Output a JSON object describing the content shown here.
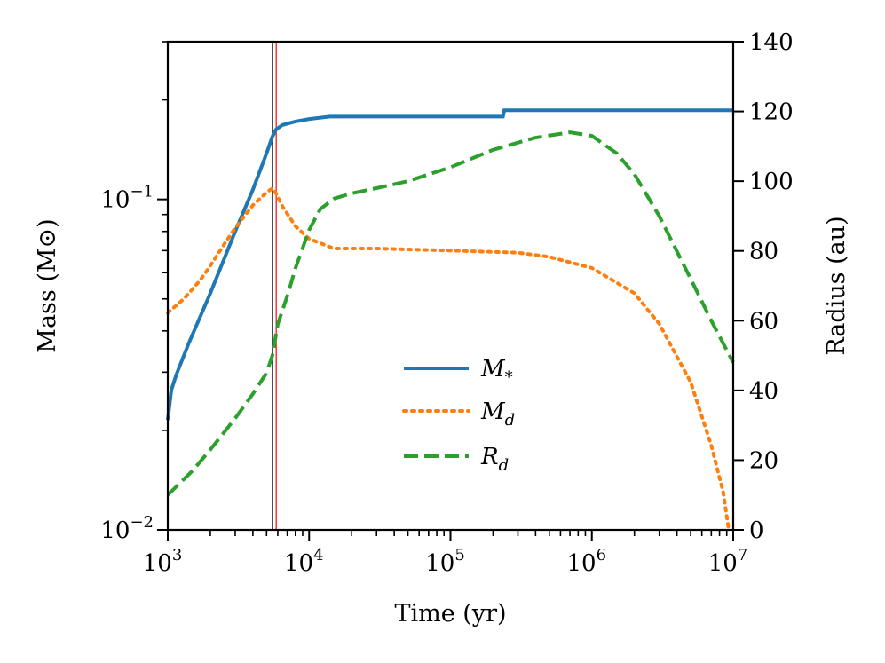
{
  "chart_data": {
    "type": "line",
    "xlabel": "Time (yr)",
    "ylabel_left": "Mass (M⊙)",
    "ylabel_right": "Radius (au)",
    "x_scale": "log",
    "xlim": [
      1000,
      10000000
    ],
    "ylim_left": [
      0.01,
      0.3
    ],
    "y_left_scale": "log",
    "ylim_right": [
      0,
      140
    ],
    "x_ticks": [
      {
        "value": 1000,
        "base": "10",
        "exp": "3"
      },
      {
        "value": 10000,
        "base": "10",
        "exp": "4"
      },
      {
        "value": 100000,
        "base": "10",
        "exp": "5"
      },
      {
        "value": 1000000,
        "base": "10",
        "exp": "6"
      },
      {
        "value": 10000000,
        "base": "10",
        "exp": "7"
      }
    ],
    "y_left_ticks": [
      {
        "value": 0.01,
        "base": "10",
        "exp": "−2"
      },
      {
        "value": 0.1,
        "base": "10",
        "exp": "−1"
      }
    ],
    "y_right_ticks": [
      {
        "value": 0,
        "label": "0"
      },
      {
        "value": 20,
        "label": "20"
      },
      {
        "value": 40,
        "label": "40"
      },
      {
        "value": 60,
        "label": "60"
      },
      {
        "value": 80,
        "label": "80"
      },
      {
        "value": 100,
        "label": "100"
      },
      {
        "value": 120,
        "label": "120"
      },
      {
        "value": 140,
        "label": "140"
      }
    ],
    "vlines": [
      {
        "x": 5500,
        "color": "#000000"
      },
      {
        "x": 5850,
        "color": "#ff0000"
      }
    ],
    "legend_position": "center",
    "series": [
      {
        "name": "M_*",
        "label_main": "M",
        "label_sub": "*",
        "axis": "left",
        "style": "solid",
        "color": "#1f77b4",
        "x": [
          1000,
          1060,
          1150,
          1400,
          2000,
          3000,
          4000,
          5000,
          5500,
          5850,
          6500,
          8000,
          10000,
          14000,
          20000,
          50000,
          100000,
          200000,
          235000,
          240000,
          500000,
          1000000,
          5000000,
          10000000
        ],
        "y": [
          0.0215,
          0.0265,
          0.0295,
          0.0365,
          0.052,
          0.08,
          0.107,
          0.138,
          0.155,
          0.163,
          0.168,
          0.172,
          0.175,
          0.178,
          0.178,
          0.178,
          0.178,
          0.178,
          0.178,
          0.186,
          0.186,
          0.186,
          0.186,
          0.186
        ]
      },
      {
        "name": "M_d",
        "label_main": "M",
        "label_sub": "d",
        "axis": "left",
        "style": "dotted",
        "color": "#ff7f0e",
        "x": [
          1000,
          1300,
          1700,
          2000,
          2500,
          3000,
          4000,
          5000,
          5500,
          5850,
          6500,
          8000,
          10000,
          15000,
          30000,
          100000,
          300000,
          500000,
          1000000,
          2000000,
          3000000,
          5000000,
          7000000,
          8500000,
          9300000
        ],
        "y": [
          0.0454,
          0.05,
          0.057,
          0.063,
          0.073,
          0.082,
          0.096,
          0.105,
          0.108,
          0.104,
          0.095,
          0.083,
          0.076,
          0.071,
          0.071,
          0.07,
          0.069,
          0.067,
          0.062,
          0.052,
          0.042,
          0.028,
          0.018,
          0.013,
          0.01
        ]
      },
      {
        "name": "R_d",
        "label_main": "R",
        "label_sub": "d",
        "axis": "right",
        "style": "dashed",
        "color": "#2ca02c",
        "x": [
          1000,
          1500,
          2000,
          3000,
          4000,
          5000,
          5500,
          6000,
          7000,
          8000,
          10000,
          12000,
          15000,
          20000,
          30000,
          50000,
          100000,
          200000,
          400000,
          700000,
          1000000,
          1500000,
          2000000,
          3000000,
          5000000,
          7000000,
          10000000
        ],
        "y": [
          10,
          17,
          23,
          32,
          39,
          45,
          50,
          59,
          67,
          75,
          86,
          92,
          95,
          96.5,
          98,
          100,
          104,
          109,
          112.5,
          114,
          113,
          108,
          102,
          90,
          72,
          60,
          48
        ]
      }
    ]
  }
}
